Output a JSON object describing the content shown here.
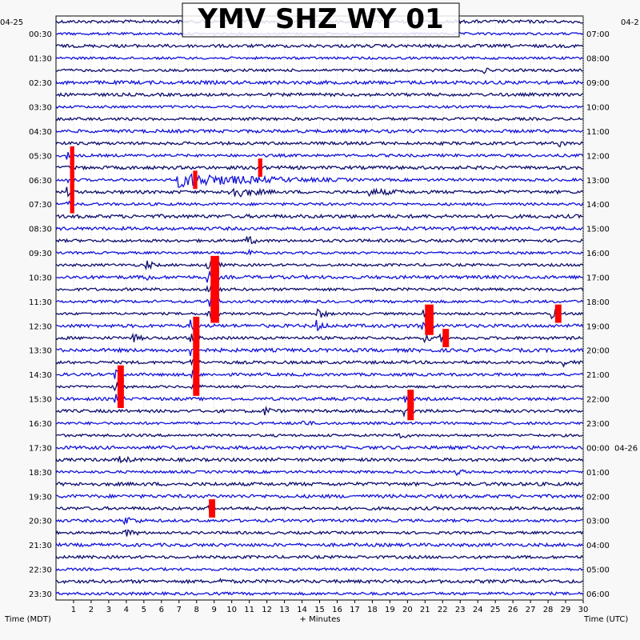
{
  "chart_data": {
    "type": "line",
    "title": "YMV SHZ WY 01",
    "xlabel": "+ Minutes",
    "ylabel_left": "Time (MDT)",
    "ylabel_right": "Time (UTC)",
    "date_left_start": "04-25",
    "date_right_start": "04-2",
    "date_right_change": "04-26",
    "x_ticks": [
      1,
      2,
      3,
      4,
      5,
      6,
      7,
      8,
      9,
      10,
      11,
      12,
      13,
      14,
      15,
      16,
      17,
      18,
      19,
      20,
      21,
      22,
      23,
      24,
      25,
      26,
      27,
      28,
      29,
      30
    ],
    "xlim": [
      0,
      30
    ],
    "rows_per_hour": 2,
    "row_count": 48,
    "left_hour_labels": [
      "00:30",
      "01:30",
      "02:30",
      "03:30",
      "04:30",
      "05:30",
      "06:30",
      "07:30",
      "08:30",
      "09:30",
      "10:30",
      "11:30",
      "12:30",
      "13:30",
      "14:30",
      "15:30",
      "16:30",
      "17:30",
      "18:30",
      "19:30",
      "20:30",
      "21:30",
      "22:30",
      "23:30"
    ],
    "right_hour_labels": [
      "07:00",
      "08:00",
      "09:00",
      "10:00",
      "11:00",
      "12:00",
      "13:00",
      "14:00",
      "15:00",
      "16:00",
      "17:00",
      "18:00",
      "19:00",
      "20:00",
      "21:00",
      "22:00",
      "23:00",
      "00:00",
      "01:00",
      "02:00",
      "03:00",
      "04:00",
      "05:00",
      "06:00"
    ],
    "trace_colors": [
      "#0d0d6e",
      "#1212d9"
    ],
    "clip_color": "#ff0000",
    "events": [
      {
        "row": 11,
        "minute": 0.8,
        "amp": 5,
        "dur": 0.4,
        "clip": true
      },
      {
        "row": 12,
        "minute": 0.8,
        "amp": 6,
        "dur": 0.4,
        "clip": true
      },
      {
        "row": 13,
        "minute": 0.8,
        "amp": 6,
        "dur": 0.4,
        "clip": true
      },
      {
        "row": 14,
        "minute": 0.8,
        "amp": 6,
        "dur": 0.4,
        "clip": true
      },
      {
        "row": 15,
        "minute": 0.8,
        "amp": 5,
        "dur": 0.4,
        "clip": true
      },
      {
        "row": 13,
        "minute": 7,
        "amp": 9,
        "dur": 10
      },
      {
        "row": 14,
        "minute": 10,
        "amp": 8,
        "dur": 3
      },
      {
        "row": 14,
        "minute": 18,
        "amp": 4,
        "dur": 4
      },
      {
        "row": 13,
        "minute": 7.8,
        "amp": 7,
        "dur": 0.4,
        "clip": true
      },
      {
        "row": 12,
        "minute": 11.5,
        "amp": 6,
        "dur": 0.4,
        "clip": true
      },
      {
        "row": 18,
        "minute": 11,
        "amp": 7,
        "dur": 0.8
      },
      {
        "row": 19,
        "minute": 11,
        "amp": 6,
        "dur": 0.6
      },
      {
        "row": 20,
        "minute": 5.3,
        "amp": 7,
        "dur": 0.6
      },
      {
        "row": 21,
        "minute": 5.3,
        "amp": 6,
        "dur": 0.6
      },
      {
        "row": 20,
        "minute": 8.8,
        "amp": 8,
        "dur": 0.8,
        "clip": true
      },
      {
        "row": 21,
        "minute": 8.8,
        "amp": 8,
        "dur": 0.8,
        "clip": true
      },
      {
        "row": 22,
        "minute": 8.8,
        "amp": 8,
        "dur": 0.8,
        "clip": true
      },
      {
        "row": 23,
        "minute": 8.8,
        "amp": 8,
        "dur": 0.8,
        "clip": true
      },
      {
        "row": 24,
        "minute": 8.8,
        "amp": 8,
        "dur": 0.8,
        "clip": true
      },
      {
        "row": 25,
        "minute": 7.8,
        "amp": 8,
        "dur": 0.6,
        "clip": true
      },
      {
        "row": 26,
        "minute": 7.8,
        "amp": 8,
        "dur": 0.6,
        "clip": true
      },
      {
        "row": 27,
        "minute": 7.8,
        "amp": 8,
        "dur": 0.6,
        "clip": true
      },
      {
        "row": 28,
        "minute": 7.8,
        "amp": 8,
        "dur": 0.6,
        "clip": true
      },
      {
        "row": 29,
        "minute": 7.8,
        "amp": 8,
        "dur": 0.6,
        "clip": true
      },
      {
        "row": 30,
        "minute": 7.8,
        "amp": 7,
        "dur": 0.6,
        "clip": true
      },
      {
        "row": 24,
        "minute": 15,
        "amp": 8,
        "dur": 0.8
      },
      {
        "row": 25,
        "minute": 15,
        "amp": 7,
        "dur": 0.8
      },
      {
        "row": 24,
        "minute": 21,
        "amp": 7,
        "dur": 0.8,
        "clip": true
      },
      {
        "row": 25,
        "minute": 21,
        "amp": 7,
        "dur": 0.8,
        "clip": true
      },
      {
        "row": 26,
        "minute": 21,
        "amp": 6,
        "dur": 0.8
      },
      {
        "row": 26,
        "minute": 22,
        "amp": 6,
        "dur": 0.6,
        "clip": true
      },
      {
        "row": 24,
        "minute": 28.4,
        "amp": 7,
        "dur": 0.6,
        "clip": true
      },
      {
        "row": 26,
        "minute": 4.5,
        "amp": 6,
        "dur": 0.8
      },
      {
        "row": 29,
        "minute": 3.5,
        "amp": 8,
        "dur": 0.6,
        "clip": true
      },
      {
        "row": 30,
        "minute": 3.5,
        "amp": 8,
        "dur": 0.6,
        "clip": true
      },
      {
        "row": 31,
        "minute": 3.5,
        "amp": 7,
        "dur": 0.6,
        "clip": true
      },
      {
        "row": 31,
        "minute": 20,
        "amp": 6,
        "dur": 0.6,
        "clip": true
      },
      {
        "row": 32,
        "minute": 20,
        "amp": 6,
        "dur": 0.6,
        "clip": true
      },
      {
        "row": 32,
        "minute": 12,
        "amp": 6,
        "dur": 1
      },
      {
        "row": 33,
        "minute": 14,
        "amp": 6,
        "dur": 0.8
      },
      {
        "row": 34,
        "minute": 19.5,
        "amp": 6,
        "dur": 0.8
      },
      {
        "row": 36,
        "minute": 3.8,
        "amp": 6,
        "dur": 1
      },
      {
        "row": 37,
        "minute": 23,
        "amp": 5,
        "dur": 0.6
      },
      {
        "row": 40,
        "minute": 8.7,
        "amp": 6,
        "dur": 0.6,
        "clip": true
      },
      {
        "row": 41,
        "minute": 4,
        "amp": 6,
        "dur": 1.5
      },
      {
        "row": 42,
        "minute": 4,
        "amp": 5,
        "dur": 1.5
      },
      {
        "row": 46,
        "minute": 9.5,
        "amp": 4,
        "dur": 0.6
      },
      {
        "row": 10,
        "minute": 28.8,
        "amp": 5,
        "dur": 0.5
      },
      {
        "row": 4,
        "minute": 24.5,
        "amp": 4,
        "dur": 0.4
      },
      {
        "row": 28,
        "minute": 29,
        "amp": 5,
        "dur": 0.8
      }
    ]
  }
}
